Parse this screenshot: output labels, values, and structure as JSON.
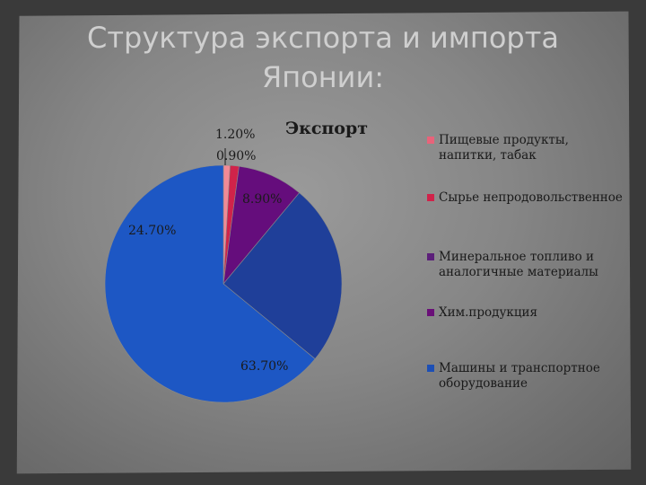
{
  "title": {
    "line1": "Структура экспорта и импорта",
    "line2": "Японии:"
  },
  "chart_data": {
    "type": "pie",
    "title": "Экспорт",
    "categories": [
      "Пищевые продукты, напитки, табак",
      "Сырье непродовольственное",
      "Минеральное топливо и аналогичные материалы",
      "Хим.продукция",
      "Машины и транспортное оборудование"
    ],
    "values": [
      0.9,
      1.2,
      8.9,
      24.7,
      63.7
    ],
    "value_labels": [
      "0.90%",
      "1.20%",
      "8.90%",
      "24.70%",
      "63.70%"
    ],
    "legend_entries": [
      {
        "label": "Пищевые продукты, напитки, табак",
        "color": "#e8637a"
      },
      {
        "label": "Сырье непродовольственное",
        "color": "#d0234a"
      },
      {
        "label": "Минеральное топливо и аналогичные материалы",
        "color": "#5c1f7a"
      },
      {
        "label": "Хим.продукция",
        "color": "#6a0f78"
      },
      {
        "label": "Машины и транспортное оборудование",
        "color": "#1d4fb5"
      }
    ],
    "slice_colors": [
      "#f08a96",
      "#d0234a",
      "#650d7c",
      "#1f3f99",
      "#1d57c4"
    ],
    "legend_position": "right"
  }
}
